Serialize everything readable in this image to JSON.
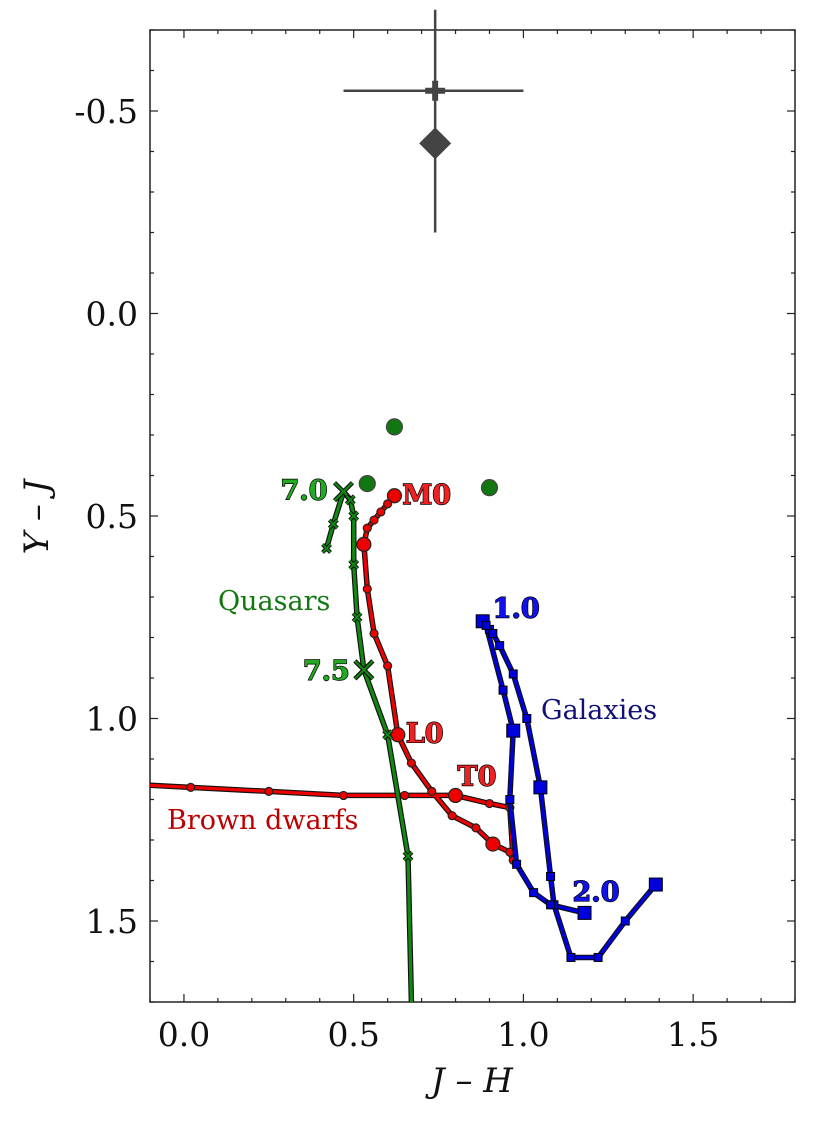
{
  "chart_data": {
    "type": "scatter",
    "title": "",
    "xlabel": "J – H",
    "ylabel": "Y – J",
    "xlim": [
      -0.1,
      1.8
    ],
    "ylim": [
      1.7,
      -0.7
    ],
    "y_inverted": true,
    "grid": false,
    "x_ticks": [
      {
        "value": 0.0,
        "label": "0.0"
      },
      {
        "value": 0.5,
        "label": "0.5"
      },
      {
        "value": 1.0,
        "label": "1.0"
      },
      {
        "value": 1.5,
        "label": "1.5"
      }
    ],
    "y_ticks": [
      {
        "value": -0.5,
        "label": "-0.5"
      },
      {
        "value": 0.0,
        "label": "0.0"
      },
      {
        "value": 0.5,
        "label": "0.5"
      },
      {
        "value": 1.0,
        "label": "1.0"
      },
      {
        "value": 1.5,
        "label": "1.5"
      }
    ],
    "series": [
      {
        "label": "Brown dwarfs",
        "color": "#ee0000",
        "points": [
          {
            "x": 0.62,
            "y": 0.45,
            "major": true
          },
          {
            "x": 0.6,
            "y": 0.47
          },
          {
            "x": 0.58,
            "y": 0.49
          },
          {
            "x": 0.56,
            "y": 0.51
          },
          {
            "x": 0.54,
            "y": 0.53
          },
          {
            "x": 0.53,
            "y": 0.57,
            "major": true
          },
          {
            "x": 0.54,
            "y": 0.68
          },
          {
            "x": 0.56,
            "y": 0.79
          },
          {
            "x": 0.6,
            "y": 0.87
          },
          {
            "x": 0.63,
            "y": 1.04,
            "major": true
          },
          {
            "x": 0.67,
            "y": 1.11
          },
          {
            "x": 0.73,
            "y": 1.18
          },
          {
            "x": 0.79,
            "y": 1.24
          },
          {
            "x": 0.86,
            "y": 1.27
          },
          {
            "x": 0.91,
            "y": 1.31,
            "major": true
          },
          {
            "x": 0.96,
            "y": 1.33
          },
          {
            "x": 0.97,
            "y": 1.35
          },
          {
            "x": 0.96,
            "y": 1.22
          },
          {
            "x": 0.9,
            "y": 1.21
          },
          {
            "x": 0.8,
            "y": 1.19,
            "major": true
          },
          {
            "x": 0.65,
            "y": 1.19
          },
          {
            "x": 0.47,
            "y": 1.19
          },
          {
            "x": 0.25,
            "y": 1.18
          },
          {
            "x": 0.02,
            "y": 1.17
          },
          {
            "x": -0.1,
            "y": 1.165
          }
        ],
        "labels": [
          {
            "text": "M0",
            "x": 0.62,
            "y": 0.45
          },
          {
            "text": "L0",
            "x": 0.63,
            "y": 1.04
          },
          {
            "text": "T0",
            "x": 0.8,
            "y": 1.19
          }
        ]
      },
      {
        "label": "Quasars",
        "color": "#118811",
        "points": [
          {
            "x": 0.42,
            "y": 0.58
          },
          {
            "x": 0.44,
            "y": 0.52
          },
          {
            "x": 0.47,
            "y": 0.44,
            "major": true
          },
          {
            "x": 0.49,
            "y": 0.46
          },
          {
            "x": 0.5,
            "y": 0.5
          },
          {
            "x": 0.5,
            "y": 0.62
          },
          {
            "x": 0.51,
            "y": 0.75
          },
          {
            "x": 0.53,
            "y": 0.88,
            "major": true
          },
          {
            "x": 0.6,
            "y": 1.04
          },
          {
            "x": 0.66,
            "y": 1.34
          },
          {
            "x": 0.67,
            "y": 1.7
          }
        ],
        "labels": [
          {
            "text": "7.0",
            "x": 0.47,
            "y": 0.44
          },
          {
            "text": "7.5",
            "x": 0.53,
            "y": 0.88
          }
        ]
      },
      {
        "label": "Galaxies",
        "color": "#0000dd",
        "points": [
          {
            "x": 0.88,
            "y": 0.76,
            "major": true
          },
          {
            "x": 0.9,
            "y": 0.78
          },
          {
            "x": 0.91,
            "y": 0.79
          },
          {
            "x": 0.93,
            "y": 0.82
          },
          {
            "x": 0.97,
            "y": 0.89
          },
          {
            "x": 1.01,
            "y": 1.0
          },
          {
            "x": 1.05,
            "y": 1.17,
            "major": true
          },
          {
            "x": 1.08,
            "y": 1.39
          },
          {
            "x": 1.09,
            "y": 1.46
          },
          {
            "x": 1.14,
            "y": 1.59
          },
          {
            "x": 1.22,
            "y": 1.59
          },
          {
            "x": 1.3,
            "y": 1.5
          },
          {
            "x": 1.39,
            "y": 1.41,
            "major": true
          }
        ],
        "secondary_points": [
          {
            "x": 0.89,
            "y": 0.77
          },
          {
            "x": 0.94,
            "y": 0.93
          },
          {
            "x": 0.97,
            "y": 1.03,
            "major": true
          },
          {
            "x": 0.96,
            "y": 1.2
          },
          {
            "x": 0.98,
            "y": 1.36
          },
          {
            "x": 1.03,
            "y": 1.43
          },
          {
            "x": 1.08,
            "y": 1.46
          },
          {
            "x": 1.18,
            "y": 1.48,
            "major": true
          }
        ],
        "labels": [
          {
            "text": "1.0",
            "x": 0.88,
            "y": 0.76
          },
          {
            "text": "2.0",
            "x": 1.18,
            "y": 1.48
          }
        ]
      }
    ],
    "target_diamond": {
      "x": 0.74,
      "y": -0.42,
      "color": "#444444"
    },
    "target_cross": {
      "x": 0.74,
      "y": -0.55,
      "xerr": [
        0.27,
        0.26
      ],
      "yerr": [
        0.2,
        0.35
      ],
      "color": "#444444"
    },
    "observed_points": [
      {
        "x": 0.62,
        "y": 0.28,
        "color": "#117711"
      },
      {
        "x": 0.54,
        "y": 0.42,
        "color": "#117711"
      },
      {
        "x": 0.9,
        "y": 0.43,
        "color": "#117711"
      }
    ]
  }
}
